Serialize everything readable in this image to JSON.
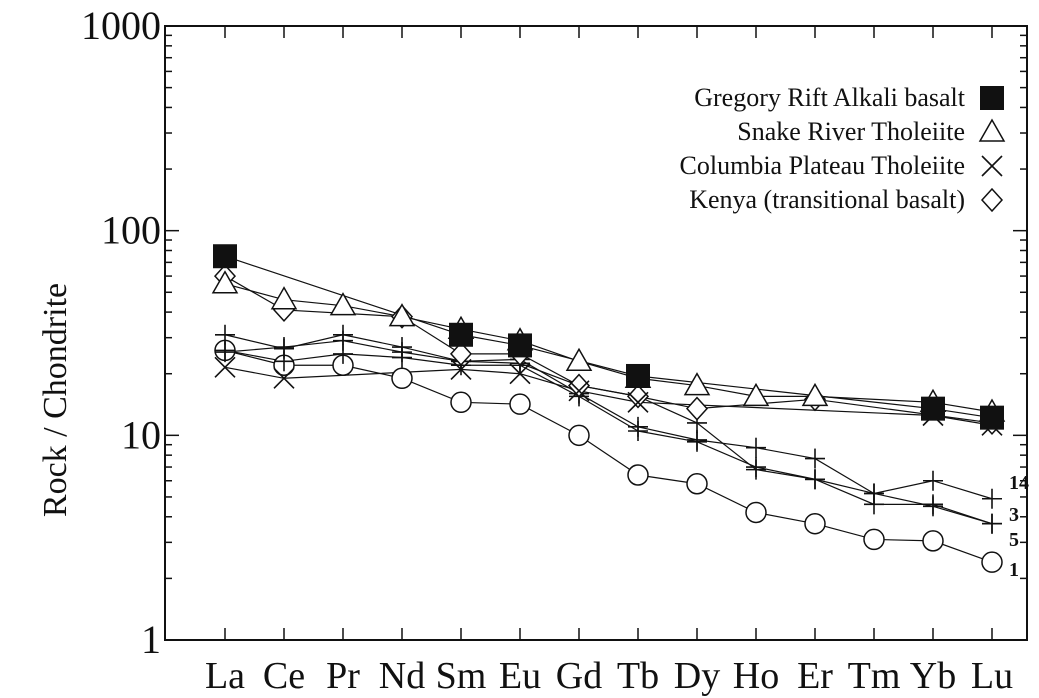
{
  "chart_data": {
    "type": "line",
    "title": "",
    "xlabel": "",
    "ylabel": "Rock / Chondrite",
    "yscale": "log",
    "ylim": [
      1,
      1000
    ],
    "y_ticks": [
      1,
      10,
      100,
      1000
    ],
    "y_tick_labels": [
      "1",
      "10",
      "100",
      "1000"
    ],
    "grid": false,
    "legend_position": "top-right",
    "categories": [
      "La",
      "Ce",
      "Pr",
      "Nd",
      "Sm",
      "Eu",
      "Gd",
      "Tb",
      "Dy",
      "Ho",
      "Er",
      "Tm",
      "Yb",
      "Lu"
    ],
    "series": [
      {
        "name": "Gregory Rift Alkali basalt",
        "marker": "filled-square",
        "values": [
          75,
          null,
          null,
          null,
          31,
          27.5,
          null,
          19.5,
          null,
          null,
          null,
          null,
          13.5,
          12.2
        ]
      },
      {
        "name": "Snake River Tholeiite",
        "marker": "triangle",
        "values": [
          55,
          46,
          43,
          38,
          33,
          29,
          23,
          19,
          17.5,
          15.5,
          15.5,
          null,
          14.5,
          13
        ]
      },
      {
        "name": "Columbia Plateau Tholeiite",
        "marker": "x",
        "values": [
          21.5,
          19,
          null,
          null,
          21,
          20,
          16.5,
          14.5,
          null,
          null,
          null,
          null,
          12.5,
          11.2
        ]
      },
      {
        "name": "Kenya (transitional basalt)",
        "marker": "diamond",
        "values": [
          60,
          41,
          null,
          38,
          25,
          25,
          17.5,
          15.5,
          13.5,
          null,
          15,
          null,
          null,
          11.5
        ]
      },
      {
        "name": "",
        "marker": "plus",
        "label": "14",
        "values": [
          31,
          26.5,
          31,
          27,
          23,
          23.5,
          16,
          11,
          9.5,
          8.7,
          7.7,
          5.2,
          6,
          4.9
        ]
      },
      {
        "name": "",
        "marker": "plus",
        "label": "3",
        "values": [
          25.5,
          27,
          29,
          25.5,
          23,
          22.5,
          17.5,
          15.5,
          11.5,
          6.8,
          6.1,
          4.6,
          4.6,
          3.7
        ]
      },
      {
        "name": "",
        "marker": "plus",
        "label": "5",
        "values": [
          26,
          23,
          25,
          24,
          22,
          22,
          15.5,
          10.5,
          9.3,
          7,
          6.1,
          5.2,
          4.5,
          3.7
        ]
      },
      {
        "name": "",
        "marker": "circle",
        "label": "1",
        "values": [
          26,
          22,
          22,
          19,
          14.5,
          14.2,
          10,
          6.4,
          5.8,
          4.2,
          3.7,
          3.1,
          3.05,
          2.4
        ]
      }
    ]
  }
}
